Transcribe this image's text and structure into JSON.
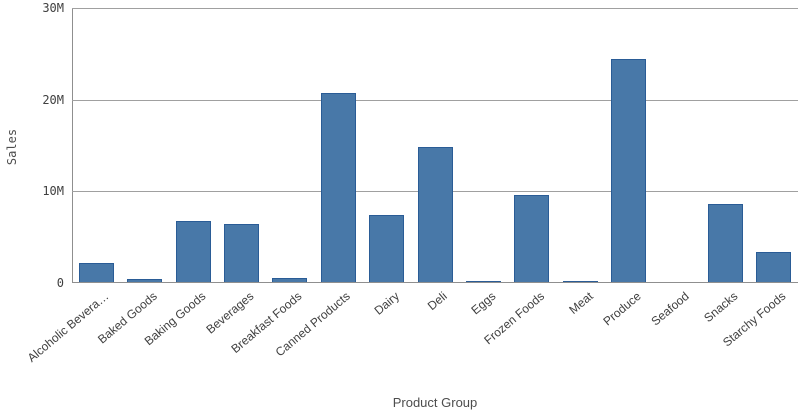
{
  "chart_data": {
    "type": "bar",
    "title": "",
    "xlabel": "Product Group",
    "ylabel": "Sales",
    "categories": [
      "Alcoholic Bevera…",
      "Baked Goods",
      "Baking Goods",
      "Beverages",
      "Breakfast Foods",
      "Canned Products",
      "Dairy",
      "Deli",
      "Eggs",
      "Frozen Foods",
      "Meat",
      "Produce",
      "Seafood",
      "Snacks",
      "Starchy Foods"
    ],
    "values": [
      2200000,
      450000,
      6800000,
      6400000,
      600000,
      20700000,
      7400000,
      14800000,
      270000,
      9600000,
      200000,
      24400000,
      100000,
      8600000,
      3400000
    ],
    "ylim": [
      0,
      30000000
    ],
    "y_ticks": [
      {
        "label": "0",
        "value": 0
      },
      {
        "label": "10M",
        "value": 10000000
      },
      {
        "label": "20M",
        "value": 20000000
      },
      {
        "label": "30M",
        "value": 30000000
      }
    ],
    "grid": "horizontal",
    "legend": "none",
    "colors": {
      "bar_fill": "#4878a8",
      "bar_border": "#2a5c96",
      "tiny_bar_fill": "#a9c4dc",
      "gridline": "#a0a0a0",
      "axis_line": "#8f8f8f",
      "tick_text": "#404040",
      "title_text": "#4d4d4d"
    }
  }
}
